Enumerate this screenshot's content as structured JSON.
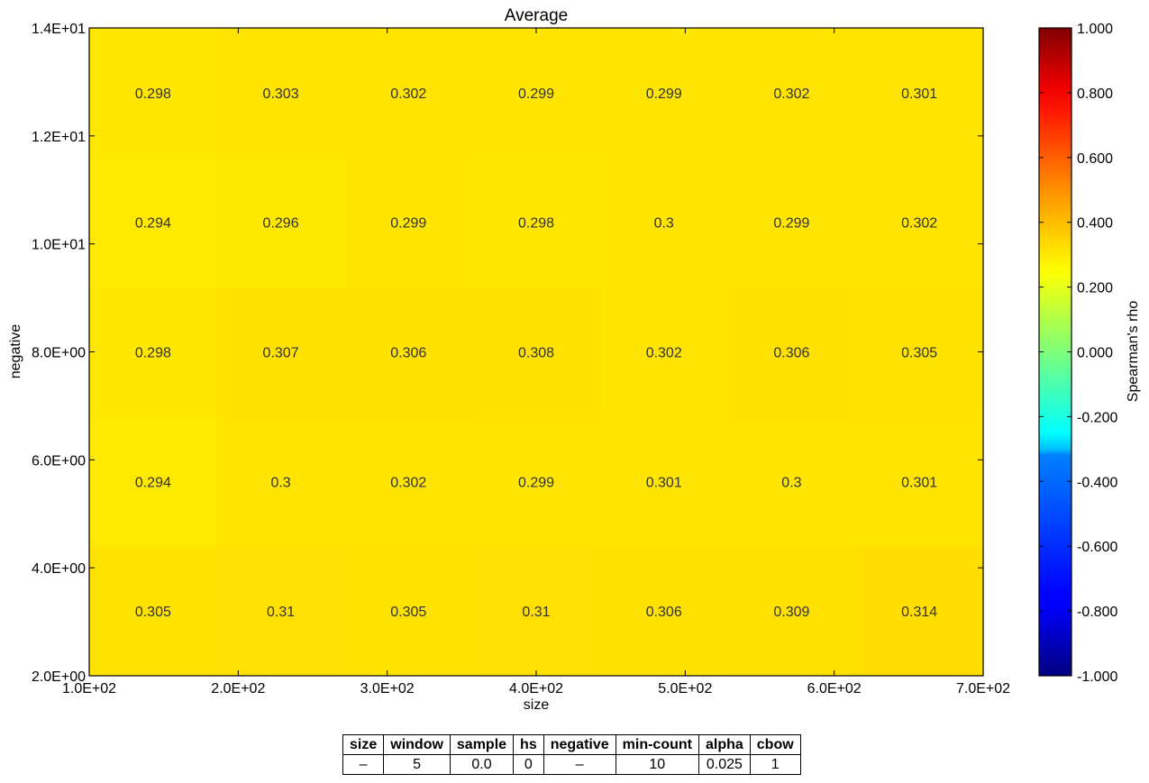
{
  "chart_data": {
    "type": "heatmap",
    "title": "Average",
    "xlabel": "size",
    "ylabel": "negative",
    "xlim": [
      100,
      700
    ],
    "ylim": [
      2,
      14
    ],
    "x_ticks": [
      "1.0E+02",
      "2.0E+02",
      "3.0E+02",
      "4.0E+02",
      "5.0E+02",
      "6.0E+02",
      "7.0E+02"
    ],
    "y_ticks": [
      "2.0E+00",
      "4.0E+00",
      "6.0E+00",
      "8.0E+00",
      "1.0E+01",
      "1.2E+01",
      "1.4E+01"
    ],
    "x": [
      100,
      200,
      300,
      400,
      500,
      600,
      700
    ],
    "y": [
      2,
      5,
      8,
      11,
      14
    ],
    "values": [
      [
        0.305,
        0.31,
        0.305,
        0.31,
        0.306,
        0.309,
        0.314
      ],
      [
        0.294,
        0.3,
        0.302,
        0.299,
        0.301,
        0.3,
        0.301
      ],
      [
        0.298,
        0.307,
        0.306,
        0.308,
        0.302,
        0.306,
        0.305
      ],
      [
        0.294,
        0.296,
        0.299,
        0.298,
        0.3,
        0.299,
        0.302
      ],
      [
        0.298,
        0.303,
        0.302,
        0.299,
        0.299,
        0.302,
        0.301
      ]
    ],
    "labels": [
      [
        "0.305",
        "0.31",
        "0.305",
        "0.31",
        "0.306",
        "0.309",
        "0.314"
      ],
      [
        "0.294",
        "0.3",
        "0.302",
        "0.299",
        "0.301",
        "0.3",
        "0.301"
      ],
      [
        "0.298",
        "0.307",
        "0.306",
        "0.308",
        "0.302",
        "0.306",
        "0.305"
      ],
      [
        "0.294",
        "0.296",
        "0.299",
        "0.298",
        "0.3",
        "0.299",
        "0.302"
      ],
      [
        "0.298",
        "0.303",
        "0.302",
        "0.299",
        "0.299",
        "0.302",
        "0.301"
      ]
    ],
    "colorbar": {
      "label": "Spearman's rho",
      "range": [
        -1,
        1
      ],
      "colormap": "jet",
      "ticks": [
        "1.000",
        "0.800",
        "0.600",
        "0.400",
        "0.200",
        "0.000",
        "-0.200",
        "-0.400",
        "-0.600",
        "-0.800",
        "-1.000"
      ]
    },
    "grid": false
  },
  "params_table": {
    "headers": [
      "size",
      "window",
      "sample",
      "hs",
      "negative",
      "min-count",
      "alpha",
      "cbow"
    ],
    "values": [
      "–",
      "5",
      "0.0",
      "0",
      "–",
      "10",
      "0.025",
      "1"
    ]
  }
}
